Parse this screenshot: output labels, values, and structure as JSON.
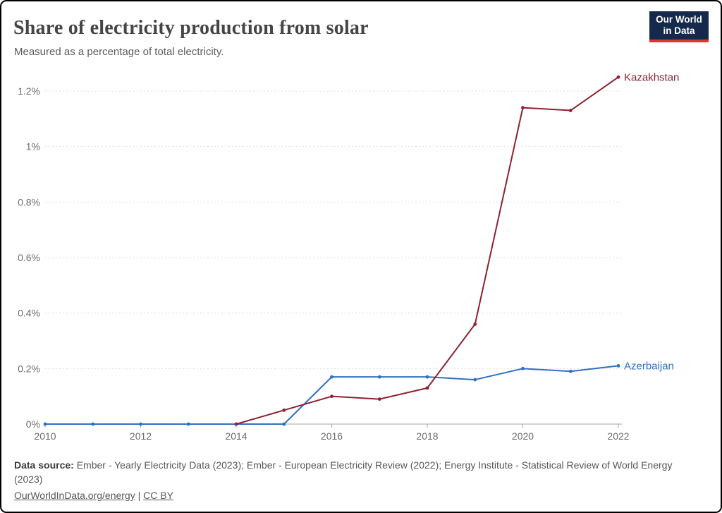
{
  "header": {
    "title": "Share of electricity production from solar",
    "subtitle": "Measured as a percentage of total electricity."
  },
  "logo": {
    "line1": "Our World",
    "line2": "in Data",
    "bg_color": "#15294d",
    "bar_color": "#d9382e"
  },
  "chart_data": {
    "type": "line",
    "title": "Share of electricity production from solar",
    "xlabel": "",
    "ylabel": "",
    "xlim": [
      2010,
      2022
    ],
    "ylim": [
      0,
      1.25
    ],
    "grid": "horizontal-dashed",
    "legend_position": "line-end-labels",
    "x_ticks": [
      2010,
      2012,
      2014,
      2016,
      2018,
      2020,
      2022
    ],
    "y_ticks": [
      {
        "label": "0%",
        "value": 0
      },
      {
        "label": "0.2%",
        "value": 0.2
      },
      {
        "label": "0.4%",
        "value": 0.4
      },
      {
        "label": "0.6%",
        "value": 0.6
      },
      {
        "label": "0.8%",
        "value": 0.8
      },
      {
        "label": "1%",
        "value": 1.0
      },
      {
        "label": "1.2%",
        "value": 1.2
      }
    ],
    "series": [
      {
        "name": "Kazakhstan",
        "color": "#8b2332",
        "x": [
          2014,
          2015,
          2016,
          2017,
          2018,
          2019,
          2020,
          2021,
          2022
        ],
        "y": [
          0,
          0.05,
          0.1,
          0.09,
          0.13,
          0.36,
          1.14,
          1.13,
          1.25
        ]
      },
      {
        "name": "Azerbaijan",
        "color": "#3070c0",
        "x": [
          2010,
          2011,
          2012,
          2013,
          2014,
          2015,
          2016,
          2017,
          2018,
          2019,
          2020,
          2021,
          2022
        ],
        "y": [
          0,
          0,
          0,
          0,
          0,
          0,
          0.17,
          0.17,
          0.17,
          0.16,
          0.2,
          0.19,
          0.21
        ]
      }
    ]
  },
  "footer": {
    "source_label": "Data source:",
    "source_text": " Ember - Yearly Electricity Data (2023); Ember - European Electricity Review (2022); Energy Institute - Statistical Review of World Energy (2023)",
    "link1": "OurWorldInData.org/energy",
    "separator": " | ",
    "link2": "CC BY"
  }
}
